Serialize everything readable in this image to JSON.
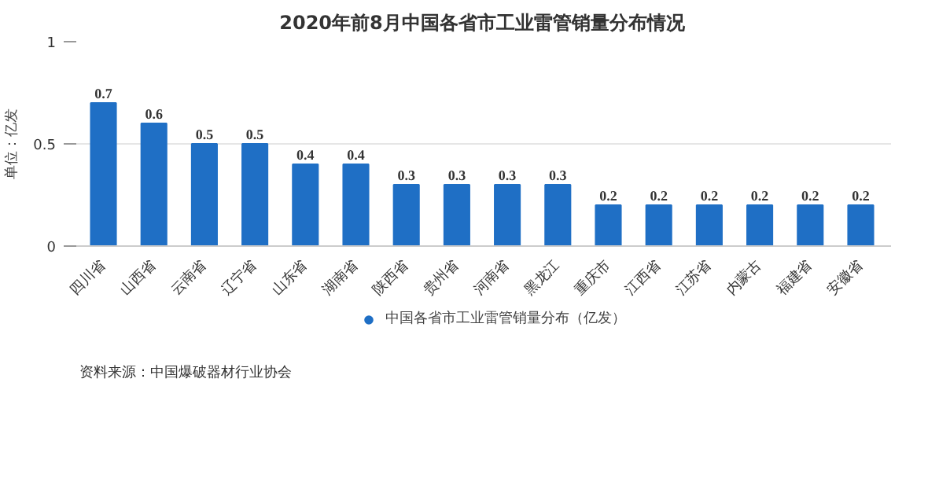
{
  "chart_data": {
    "type": "bar",
    "title": "2020年前8月中国各省市工业雷管销量分布情况",
    "ylabel": "单位：亿发",
    "categories": [
      "四川省",
      "山西省",
      "云南省",
      "辽宁省",
      "山东省",
      "湖南省",
      "陕西省",
      "贵州省",
      "河南省",
      "黑龙江",
      "重庆市",
      "江西省",
      "江苏省",
      "内蒙古",
      "福建省",
      "安徽省"
    ],
    "series": [
      {
        "name": "中国各省市工业雷管销量分布（亿发）",
        "color": "#1f6fc5",
        "values": [
          0.7,
          0.6,
          0.5,
          0.5,
          0.4,
          0.4,
          0.3,
          0.3,
          0.3,
          0.3,
          0.2,
          0.2,
          0.2,
          0.2,
          0.2,
          0.2
        ]
      }
    ],
    "ylim": [
      0,
      1
    ],
    "yticks": [
      0,
      0.5,
      1
    ],
    "grid": "y",
    "legend": "bottom",
    "data_labels": true,
    "annotations": [
      "资料来源：中国爆破器材行业协会"
    ]
  }
}
